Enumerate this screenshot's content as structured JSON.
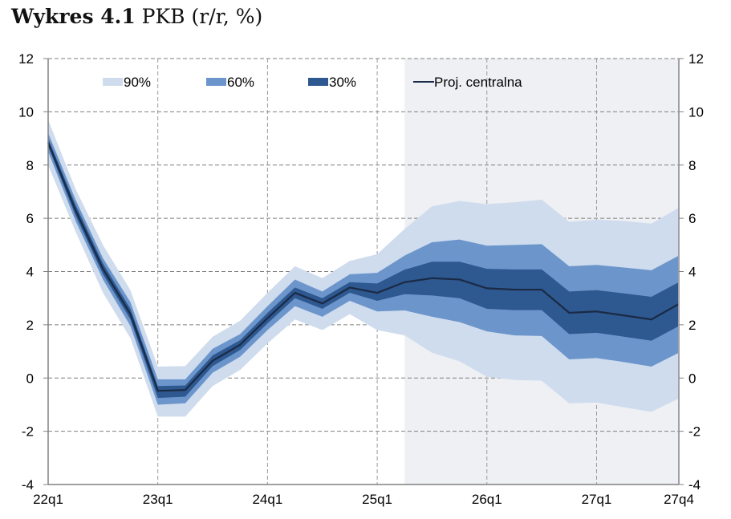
{
  "title": {
    "bold": "Wykres 4.1",
    "rest": " PKB (r/r, %)"
  },
  "colors": {
    "band90": "#cfdcee",
    "band60": "#6c96cb",
    "band30": "#2e5890",
    "central": "#1a2a44",
    "projection_shade": "#eef0f3",
    "grid": "#7f7f7f"
  },
  "chart_data": {
    "type": "area",
    "title": "Wykres 4.1 PKB (r/r, %)",
    "xlabel": "",
    "ylabel": "",
    "ylim": [
      -4,
      12
    ],
    "yticks": [
      -4,
      -2,
      0,
      2,
      4,
      6,
      8,
      10,
      12
    ],
    "xtick_labels": [
      "22q1",
      "23q1",
      "24q1",
      "25q1",
      "26q1",
      "27q1",
      "27q4"
    ],
    "xtick_indices": [
      0,
      4,
      8,
      12,
      16,
      20,
      23
    ],
    "grid": true,
    "projection_start_index": 13,
    "legend": {
      "placement": "top",
      "entries": [
        "90%",
        "60%",
        "30%",
        "Proj. centralna"
      ]
    },
    "x": [
      "22q1",
      "22q2",
      "22q3",
      "22q4",
      "23q1",
      "23q2",
      "23q3",
      "23q4",
      "24q1",
      "24q2",
      "24q3",
      "24q4",
      "25q1",
      "25q2",
      "25q3",
      "25q4",
      "26q1",
      "26q2",
      "26q3",
      "26q4",
      "27q1",
      "27q2",
      "27q3",
      "27q4"
    ],
    "central": [
      8.85,
      6.3,
      4.1,
      2.4,
      -0.48,
      -0.45,
      0.65,
      1.25,
      2.25,
      3.2,
      2.8,
      3.4,
      3.2,
      3.6,
      3.75,
      3.7,
      3.37,
      3.32,
      3.32,
      2.45,
      2.5,
      2.35,
      2.2,
      2.78
    ],
    "series": [
      {
        "name": "90% upper",
        "values": [
          9.7,
          7.1,
          5.0,
          3.3,
          0.43,
          0.45,
          1.55,
          2.15,
          3.2,
          4.2,
          3.75,
          4.4,
          4.65,
          5.6,
          6.45,
          6.65,
          6.53,
          6.6,
          6.7,
          5.87,
          5.95,
          5.9,
          5.8,
          6.4
        ]
      },
      {
        "name": "60% upper",
        "values": [
          9.2,
          6.7,
          4.5,
          2.85,
          -0.05,
          -0.05,
          1.1,
          1.65,
          2.7,
          3.7,
          3.25,
          3.9,
          3.95,
          4.6,
          5.1,
          5.2,
          4.97,
          5.0,
          5.03,
          4.2,
          4.25,
          4.15,
          4.05,
          4.6
        ]
      },
      {
        "name": "30% upper",
        "values": [
          9.0,
          6.5,
          4.3,
          2.6,
          -0.3,
          -0.28,
          0.85,
          1.42,
          2.45,
          3.4,
          3.0,
          3.6,
          3.55,
          4.07,
          4.37,
          4.37,
          4.1,
          4.08,
          4.08,
          3.25,
          3.3,
          3.18,
          3.05,
          3.6
        ]
      },
      {
        "name": "30% lower",
        "values": [
          8.7,
          6.1,
          3.9,
          2.2,
          -0.75,
          -0.7,
          0.45,
          1.05,
          2.05,
          3.0,
          2.6,
          3.2,
          2.9,
          3.15,
          3.1,
          3.0,
          2.6,
          2.55,
          2.55,
          1.65,
          1.7,
          1.55,
          1.4,
          1.95
        ]
      },
      {
        "name": "60% lower",
        "values": [
          8.5,
          5.9,
          3.7,
          1.95,
          -1.0,
          -0.95,
          0.2,
          0.8,
          1.8,
          2.7,
          2.3,
          2.9,
          2.5,
          2.54,
          2.3,
          2.1,
          1.75,
          1.6,
          1.58,
          0.7,
          0.75,
          0.6,
          0.43,
          0.95
        ]
      },
      {
        "name": "90% lower",
        "values": [
          8.0,
          5.5,
          3.2,
          1.5,
          -1.45,
          -1.45,
          -0.3,
          0.3,
          1.3,
          2.2,
          1.8,
          2.4,
          1.8,
          1.6,
          0.95,
          0.63,
          0.05,
          -0.07,
          -0.1,
          -0.95,
          -0.92,
          -1.1,
          -1.27,
          -0.77
        ]
      }
    ]
  }
}
